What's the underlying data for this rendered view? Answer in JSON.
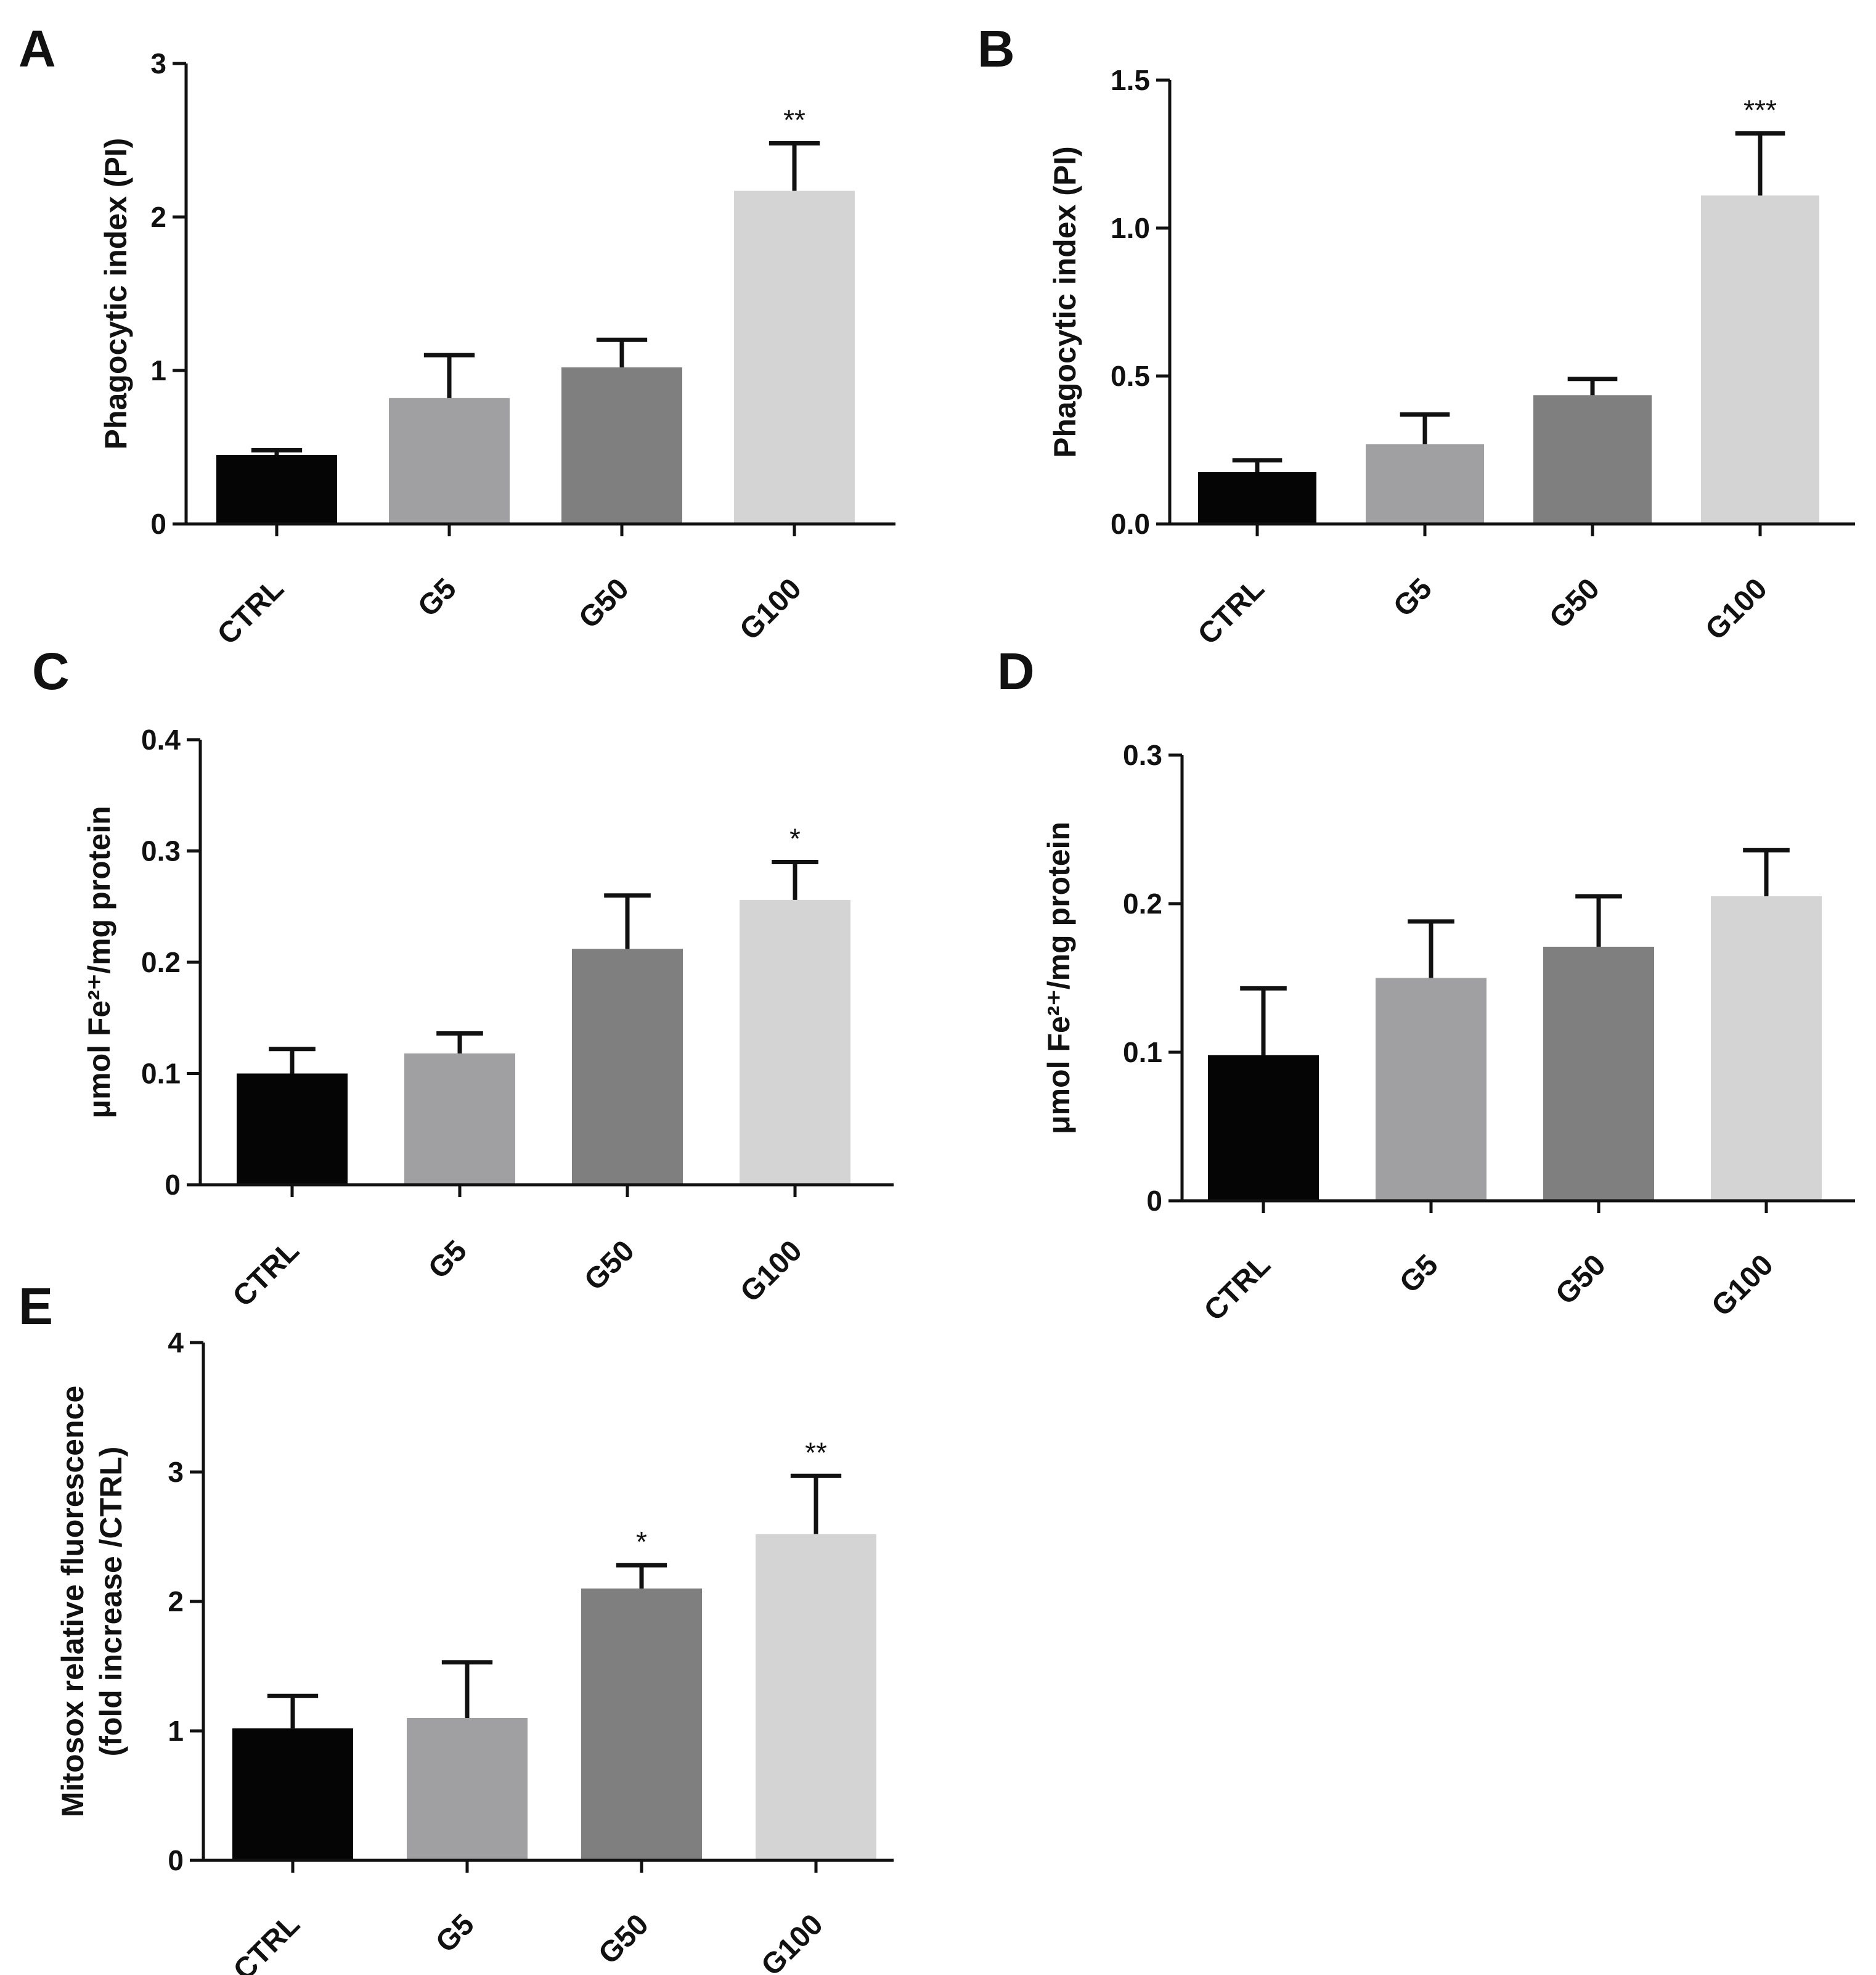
{
  "colors": {
    "CTRL": "#050505",
    "G5": "#a0a0a3",
    "G50": "#7f7f7f",
    "G100": "#d4d4d4",
    "axis": "#111111"
  },
  "chart_data": [
    {
      "panel": "A",
      "type": "bar",
      "categories": [
        "CTRL",
        "G5",
        "G50",
        "G100"
      ],
      "values": [
        0.45,
        0.82,
        1.02,
        2.17
      ],
      "errors": [
        0.03,
        0.28,
        0.18,
        0.31
      ],
      "significance": [
        "",
        "",
        "",
        "**"
      ],
      "ylabel": "Phagocytic index (PI)",
      "ylabel_line2": "",
      "ylim": [
        0,
        3
      ],
      "yticks": [
        0,
        1,
        2,
        3
      ],
      "ytick_labels": [
        "0",
        "1",
        "2",
        "3"
      ]
    },
    {
      "panel": "B",
      "type": "bar",
      "categories": [
        "CTRL",
        "G5",
        "G50",
        "G100"
      ],
      "values": [
        0.175,
        0.27,
        0.435,
        1.11
      ],
      "errors": [
        0.04,
        0.1,
        0.055,
        0.21
      ],
      "significance": [
        "",
        "",
        "",
        "***"
      ],
      "ylabel": "Phagocytic index (PI)",
      "ylabel_line2": "",
      "ylim": [
        0,
        1.5
      ],
      "yticks": [
        0,
        0.5,
        1.0,
        1.5
      ],
      "ytick_labels": [
        "0.0",
        "0.5",
        "1.0",
        "1.5"
      ]
    },
    {
      "panel": "C",
      "type": "bar",
      "categories": [
        "CTRL",
        "G5",
        "G50",
        "G100"
      ],
      "values": [
        0.1,
        0.118,
        0.212,
        0.256
      ],
      "errors": [
        0.022,
        0.018,
        0.048,
        0.034
      ],
      "significance": [
        "",
        "",
        "",
        "*"
      ],
      "ylabel": "μmol Fe²⁺/mg protein",
      "ylabel_line2": "",
      "ylim": [
        0,
        0.4
      ],
      "yticks": [
        0,
        0.1,
        0.2,
        0.3,
        0.4
      ],
      "ytick_labels": [
        "0",
        "0.1",
        "0.2",
        "0.3",
        "0.4"
      ]
    },
    {
      "panel": "D",
      "type": "bar",
      "categories": [
        "CTRL",
        "G5",
        "G50",
        "G100"
      ],
      "values": [
        0.098,
        0.15,
        0.171,
        0.205
      ],
      "errors": [
        0.045,
        0.038,
        0.034,
        0.031
      ],
      "significance": [
        "",
        "",
        "",
        ""
      ],
      "ylabel": "μmol Fe²⁺/mg protein",
      "ylabel_line2": "",
      "ylim": [
        0,
        0.3
      ],
      "yticks": [
        0,
        0.1,
        0.2,
        0.3
      ],
      "ytick_labels": [
        "0",
        "0.1",
        "0.2",
        "0.3"
      ]
    },
    {
      "panel": "E",
      "type": "bar",
      "categories": [
        "CTRL",
        "G5",
        "G50",
        "G100"
      ],
      "values": [
        1.02,
        1.1,
        2.1,
        2.52
      ],
      "errors": [
        0.25,
        0.43,
        0.18,
        0.45
      ],
      "significance": [
        "",
        "",
        "*",
        "**"
      ],
      "ylabel": "Mitosox relative fluorescence",
      "ylabel_line2": "(fold increase /CTRL)",
      "ylim": [
        0,
        4
      ],
      "yticks": [
        0,
        1,
        2,
        3,
        4
      ],
      "ytick_labels": [
        "0",
        "1",
        "2",
        "3",
        "4"
      ]
    }
  ]
}
